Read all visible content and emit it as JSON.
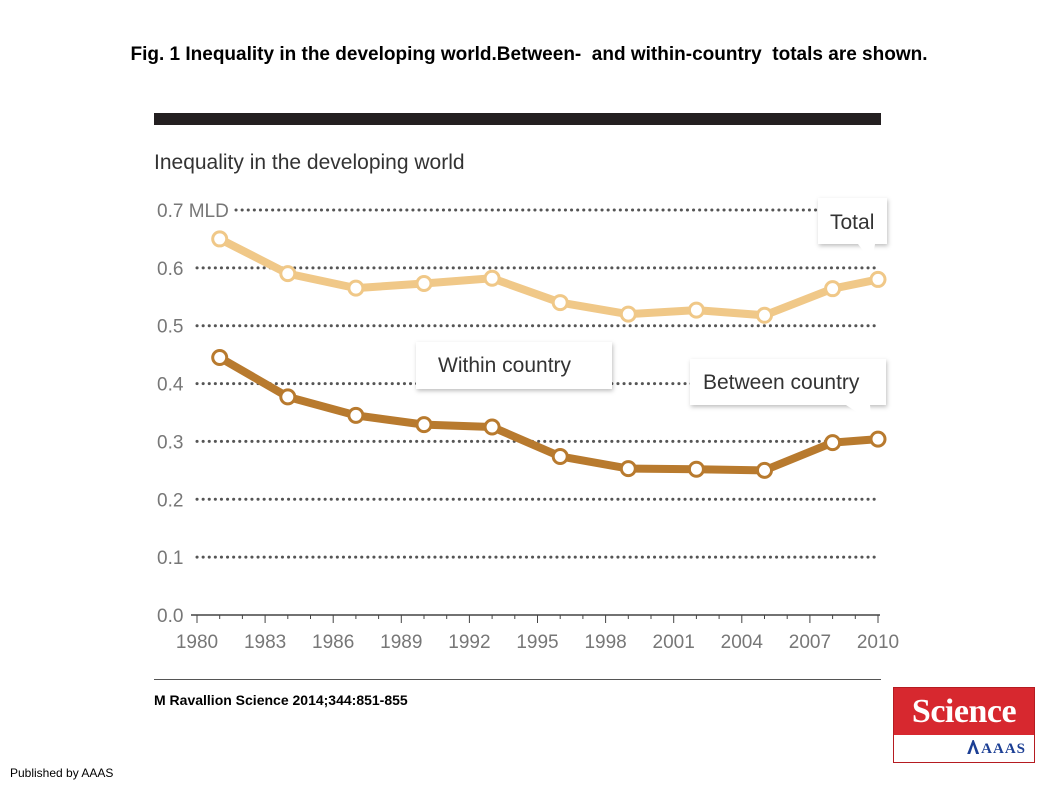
{
  "figure_title": "Fig. 1 Inequality in the developing world.Between-  and within-country  totals are shown.",
  "citation": "M Ravallion Science 2014;344:851-855",
  "published": "Published by AAAS",
  "logo": {
    "top": "Science",
    "bottom": "AAAS"
  },
  "colors": {
    "total": "#f0c888",
    "between": "#b87a2e",
    "topbar": "#231f20",
    "logo_red": "#d7282f"
  },
  "chart_data": {
    "type": "line",
    "title": "Inequality in the developing world",
    "ylabel": "MLD",
    "ylim": [
      0,
      0.7
    ],
    "yticks": [
      "0.0",
      "0.1",
      "0.2",
      "0.3",
      "0.4",
      "0.5",
      "0.6",
      "0.7 MLD"
    ],
    "ytick_values": [
      0,
      0.1,
      0.2,
      0.3,
      0.4,
      0.5,
      0.6,
      0.7
    ],
    "xlim": [
      1980,
      2010
    ],
    "xticks": [
      "1980",
      "1983",
      "1986",
      "1989",
      "1992",
      "1995",
      "1998",
      "2001",
      "2004",
      "2007",
      "2010"
    ],
    "xtick_values": [
      1980,
      1983,
      1986,
      1989,
      1992,
      1995,
      1998,
      2001,
      2004,
      2007,
      2010
    ],
    "grid": "dotted horizontal",
    "series": [
      {
        "name": "Total",
        "x": [
          1981,
          1984,
          1987,
          1990,
          1993,
          1996,
          1999,
          2002,
          2005,
          2008,
          2010
        ],
        "values": [
          0.65,
          0.59,
          0.565,
          0.573,
          0.582,
          0.54,
          0.52,
          0.527,
          0.518,
          0.564,
          0.58
        ]
      },
      {
        "name": "Between country",
        "x": [
          1981,
          1984,
          1987,
          1990,
          1993,
          1996,
          1999,
          2002,
          2005,
          2008,
          2010
        ],
        "values": [
          0.445,
          0.377,
          0.345,
          0.329,
          0.325,
          0.274,
          0.253,
          0.252,
          0.25,
          0.298,
          0.304
        ]
      }
    ],
    "annotations": [
      "Total",
      "Within country",
      "Between country"
    ]
  }
}
